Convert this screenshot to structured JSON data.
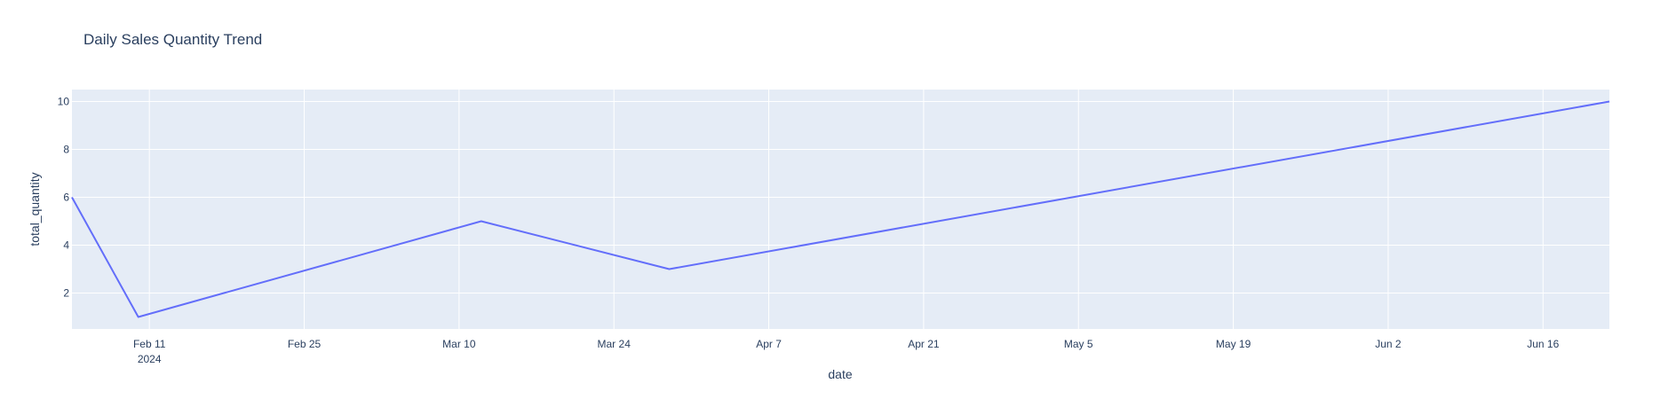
{
  "chart_data": {
    "type": "line",
    "title": "Daily Sales Quantity Trend",
    "xlabel": "date",
    "ylabel": "total_quantity",
    "grid": true,
    "legend": "none",
    "x_axis_type": "date",
    "x_range": [
      "2024-02-04",
      "2024-06-22"
    ],
    "y_range": [
      0.5,
      10.5
    ],
    "x_ticks": [
      {
        "date": "2024-02-11",
        "label": "Feb 11",
        "sublabel": "2024"
      },
      {
        "date": "2024-02-25",
        "label": "Feb 25"
      },
      {
        "date": "2024-03-10",
        "label": "Mar 10"
      },
      {
        "date": "2024-03-24",
        "label": "Mar 24"
      },
      {
        "date": "2024-04-07",
        "label": "Apr 7"
      },
      {
        "date": "2024-04-21",
        "label": "Apr 21"
      },
      {
        "date": "2024-05-05",
        "label": "May 5"
      },
      {
        "date": "2024-05-19",
        "label": "May 19"
      },
      {
        "date": "2024-06-02",
        "label": "Jun 2"
      },
      {
        "date": "2024-06-16",
        "label": "Jun 16"
      }
    ],
    "y_ticks": [
      2,
      4,
      6,
      8,
      10
    ],
    "series": [
      {
        "color": "#636efa",
        "x": [
          "2024-02-04",
          "2024-02-10",
          "2024-03-12",
          "2024-03-29",
          "2024-06-22"
        ],
        "y": [
          6,
          1,
          5,
          3,
          10
        ]
      }
    ]
  },
  "colors": {
    "plot_bg": "#e5ecf6",
    "grid": "#ffffff",
    "text": "#2a3f5f"
  }
}
